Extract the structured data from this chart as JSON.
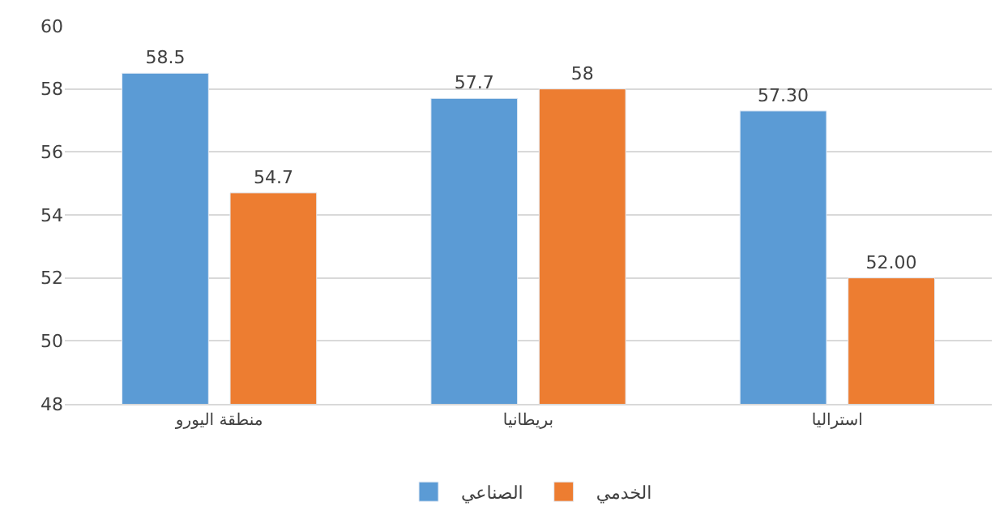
{
  "chart_data": {
    "type": "bar",
    "categories": [
      "منطقة اليورو",
      "بريطانيا",
      "استراليا"
    ],
    "series": [
      {
        "name": "الصناعي",
        "color": "#5b9bd5",
        "values": [
          58.5,
          57.7,
          57.3
        ],
        "value_labels": [
          "58.5",
          "57.7",
          "57.30"
        ]
      },
      {
        "name": "الخدمي",
        "color": "#ed7d31",
        "values": [
          54.7,
          58,
          52
        ],
        "value_labels": [
          "54.7",
          "58",
          "52.00"
        ]
      }
    ],
    "ylim": [
      48,
      60
    ],
    "yticks": [
      48,
      50,
      52,
      54,
      56,
      58,
      60
    ],
    "grid": "y",
    "legend": "bottom"
  }
}
